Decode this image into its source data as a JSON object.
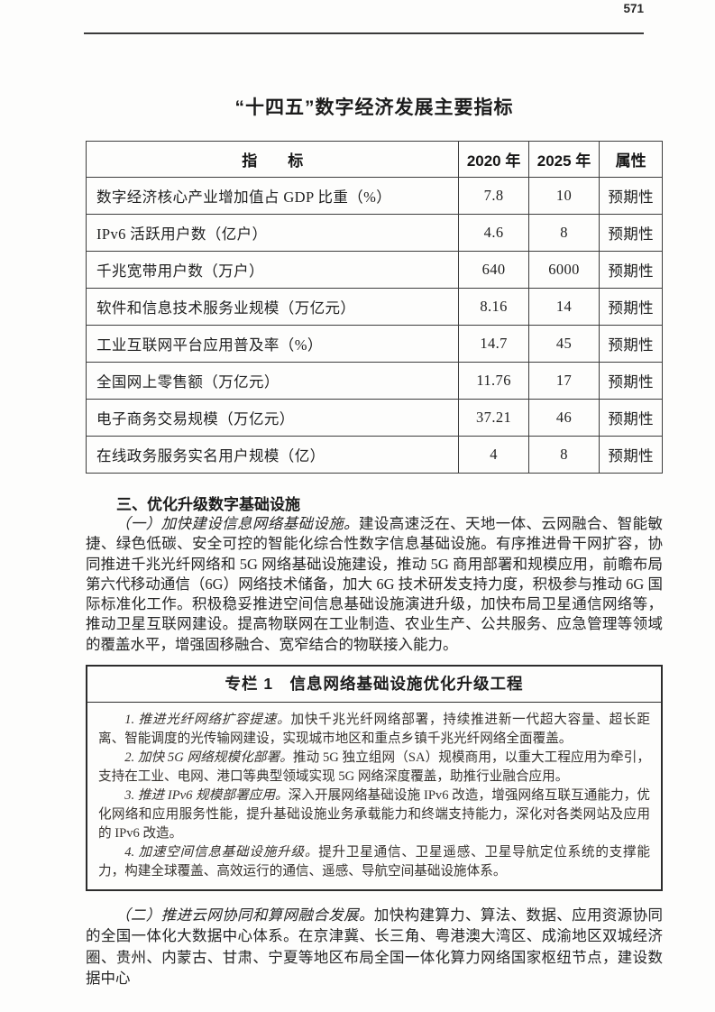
{
  "page": {
    "number": "571"
  },
  "doc_title": "“十四五”数字经济发展主要指标",
  "table": {
    "headers": [
      "指　　标",
      "2020 年",
      "2025 年",
      "属性"
    ],
    "rows": [
      [
        "数字经济核心产业增加值占 GDP 比重（%）",
        "7.8",
        "10",
        "预期性"
      ],
      [
        "IPv6 活跃用户数（亿户）",
        "4.6",
        "8",
        "预期性"
      ],
      [
        "千兆宽带用户数（万户）",
        "640",
        "6000",
        "预期性"
      ],
      [
        "软件和信息技术服务业规模（万亿元）",
        "8.16",
        "14",
        "预期性"
      ],
      [
        "工业互联网平台应用普及率（%）",
        "14.7",
        "45",
        "预期性"
      ],
      [
        "全国网上零售额（万亿元）",
        "11.76",
        "17",
        "预期性"
      ],
      [
        "电子商务交易规模（万亿元）",
        "37.21",
        "46",
        "预期性"
      ],
      [
        "在线政务服务实名用户规模（亿）",
        "4",
        "8",
        "预期性"
      ]
    ]
  },
  "section": {
    "heading": "三、优化升级数字基础设施",
    "para1_lead": "（一）加快建设信息网络基础设施。",
    "para1_body": "建设高速泛在、天地一体、云网融合、智能敏捷、绿色低碳、安全可控的智能化综合性数字信息基础设施。有序推进骨干网扩容，协同推进千兆光纤网络和 5G 网络基础设施建设，推动 5G 商用部署和规模应用，前瞻布局第六代移动通信（6G）网络技术储备，加大 6G 技术研发支持力度，积极参与推动 6G 国际标准化工作。积极稳妥推进空间信息基础设施演进升级，加快布局卫星通信网络等，推动卫星互联网建设。提高物联网在工业制造、农业生产、公共服务、应急管理等领域的覆盖水平，增强固移融合、宽窄结合的物联接入能力。"
  },
  "panel": {
    "title": "专栏 1　信息网络基础设施优化升级工程",
    "items": [
      {
        "lead": "1. 推进光纤网络扩容提速。",
        "body": "加快千兆光纤网络部署，持续推进新一代超大容量、超长距离、智能调度的光传输网建设，实现城市地区和重点乡镇千兆光纤网络全面覆盖。"
      },
      {
        "lead": "2. 加快 5G 网络规模化部署。",
        "body": "推动 5G 独立组网（SA）规模商用，以重大工程应用为牵引，支持在工业、电网、港口等典型领域实现 5G 网络深度覆盖，助推行业融合应用。"
      },
      {
        "lead": "3. 推进 IPv6 规模部署应用。",
        "body": "深入开展网络基础设施 IPv6 改造，增强网络互联互通能力，优化网络和应用服务性能，提升基础设施业务承载能力和终端支持能力，深化对各类网站及应用的 IPv6 改造。"
      },
      {
        "lead": "4. 加速空间信息基础设施升级。",
        "body": "提升卫星通信、卫星遥感、卫星导航定位系统的支撑能力，构建全球覆盖、高效运行的通信、遥感、导航空间基础设施体系。"
      }
    ]
  },
  "para2": {
    "lead": "（二）推进云网协同和算网融合发展。",
    "body": "加快构建算力、算法、数据、应用资源协同的全国一体化大数据中心体系。在京津冀、长三角、粤港澳大湾区、成渝地区双城经济圈、贵州、内蒙古、甘肃、宁夏等地区布局全国一体化算力网络国家枢纽节点，建设数据中心"
  }
}
